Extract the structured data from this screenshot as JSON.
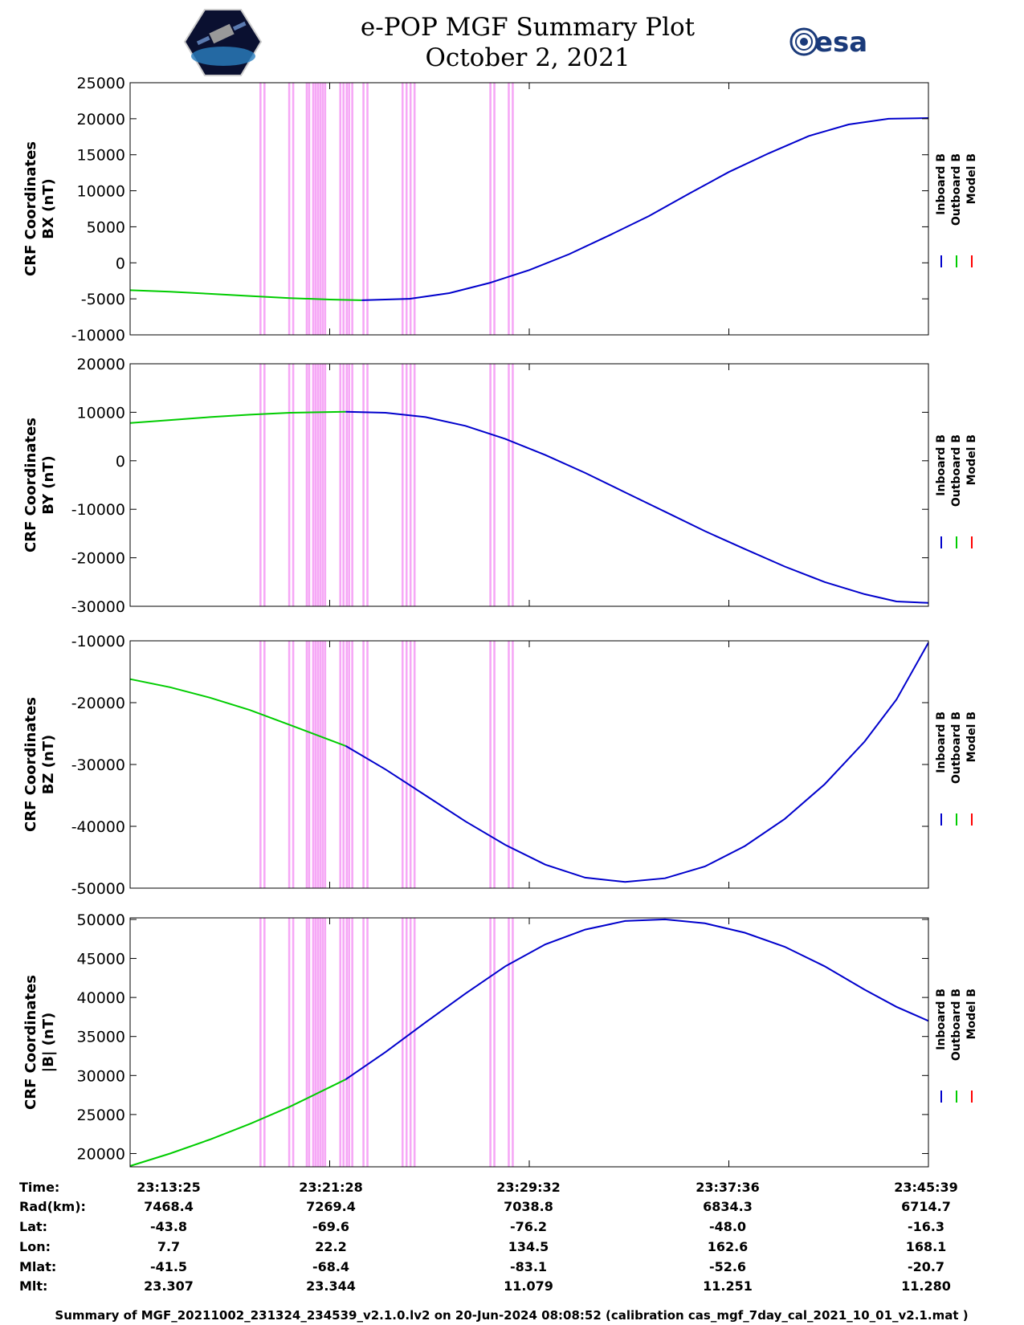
{
  "header": {
    "title_line1": "e-POP MGF Summary Plot",
    "title_line2": "October 2, 2021",
    "logo_left": "cassiope-mission-logo",
    "logo_right_text": "esa"
  },
  "colors": {
    "inboard": "#0000cc",
    "outboard": "#00cc00",
    "model": "#ff0000",
    "bands": "#f6a8f6"
  },
  "chart_data": [
    {
      "type": "line",
      "ylabel_line1": "CRF Coordinates",
      "ylabel_line2": "BX (nT)",
      "ylim": [
        -10000,
        25000
      ],
      "yticks": [
        25000,
        20000,
        15000,
        10000,
        5000,
        0,
        -5000,
        -10000
      ],
      "legend": [
        "Inboard B",
        "Outboard B",
        "Model B"
      ],
      "series": [
        {
          "name": "Outboard B",
          "x": [
            0,
            0.05,
            0.1,
            0.15,
            0.2,
            0.25,
            0.29
          ],
          "y": [
            -3800,
            -4000,
            -4300,
            -4600,
            -4900,
            -5100,
            -5200
          ]
        },
        {
          "name": "Inboard B",
          "x": [
            0.29,
            0.35,
            0.4,
            0.45,
            0.5,
            0.55,
            0.6,
            0.65,
            0.7,
            0.75,
            0.8,
            0.85,
            0.9,
            0.95,
            1.0
          ],
          "y": [
            -5200,
            -5000,
            -4200,
            -2800,
            -1000,
            1200,
            3800,
            6500,
            9600,
            12600,
            15200,
            17600,
            19200,
            20000,
            20100
          ]
        }
      ]
    },
    {
      "type": "line",
      "ylabel_line1": "CRF Coordinates",
      "ylabel_line2": "BY (nT)",
      "ylim": [
        -30000,
        20000
      ],
      "yticks": [
        20000,
        10000,
        0,
        -10000,
        -20000,
        -30000
      ],
      "legend": [
        "Inboard B",
        "Outboard B",
        "Model B"
      ],
      "series": [
        {
          "name": "Outboard B",
          "x": [
            0,
            0.05,
            0.1,
            0.15,
            0.2,
            0.27
          ],
          "y": [
            7800,
            8400,
            9000,
            9500,
            9900,
            10100
          ]
        },
        {
          "name": "Inboard B",
          "x": [
            0.27,
            0.32,
            0.37,
            0.42,
            0.47,
            0.52,
            0.57,
            0.62,
            0.67,
            0.72,
            0.77,
            0.82,
            0.87,
            0.92,
            0.96,
            1.0
          ],
          "y": [
            10100,
            9900,
            9000,
            7200,
            4500,
            1200,
            -2500,
            -6500,
            -10500,
            -14500,
            -18200,
            -21800,
            -25000,
            -27500,
            -29000,
            -29300
          ]
        }
      ]
    },
    {
      "type": "line",
      "ylabel_line1": "CRF Coordinates",
      "ylabel_line2": "BZ (nT)",
      "ylim": [
        -50000,
        -10000
      ],
      "yticks": [
        -10000,
        -20000,
        -30000,
        -40000,
        -50000
      ],
      "legend": [
        "Inboard B",
        "Outboard B",
        "Model B"
      ],
      "series": [
        {
          "name": "Outboard B",
          "x": [
            0,
            0.05,
            0.1,
            0.15,
            0.2,
            0.27
          ],
          "y": [
            -16200,
            -17500,
            -19200,
            -21200,
            -23600,
            -27000
          ]
        },
        {
          "name": "Inboard B",
          "x": [
            0.27,
            0.32,
            0.37,
            0.42,
            0.47,
            0.52,
            0.57,
            0.62,
            0.67,
            0.72,
            0.77,
            0.82,
            0.87,
            0.92,
            0.96,
            1.0
          ],
          "y": [
            -27000,
            -30800,
            -35000,
            -39200,
            -43000,
            -46200,
            -48300,
            -49000,
            -48400,
            -46500,
            -43200,
            -38800,
            -33200,
            -26300,
            -19500,
            -10300
          ]
        }
      ]
    },
    {
      "type": "line",
      "ylabel_line1": "CRF Coordinates",
      "ylabel_line2": "|B| (nT)",
      "ylim": [
        18300,
        50200
      ],
      "yticks": [
        50000,
        45000,
        40000,
        35000,
        30000,
        25000,
        20000
      ],
      "legend": [
        "Inboard B",
        "Outboard B",
        "Model B"
      ],
      "series": [
        {
          "name": "Outboard B",
          "x": [
            0,
            0.05,
            0.1,
            0.15,
            0.2,
            0.27
          ],
          "y": [
            18400,
            20000,
            21800,
            23800,
            26000,
            29500
          ]
        },
        {
          "name": "Inboard B",
          "x": [
            0.27,
            0.32,
            0.37,
            0.42,
            0.47,
            0.52,
            0.57,
            0.62,
            0.67,
            0.72,
            0.77,
            0.82,
            0.87,
            0.92,
            0.96,
            1.0
          ],
          "y": [
            29500,
            33000,
            36800,
            40500,
            44000,
            46800,
            48700,
            49800,
            50000,
            49500,
            48300,
            46500,
            44000,
            41000,
            38800,
            37000
          ]
        }
      ]
    }
  ],
  "band_positions": [
    0.162,
    0.167,
    0.198,
    0.203,
    0.22,
    0.223,
    0.228,
    0.231,
    0.234,
    0.237,
    0.24,
    0.243,
    0.262,
    0.266,
    0.27,
    0.273,
    0.277,
    0.291,
    0.296,
    0.34,
    0.345,
    0.35,
    0.355,
    0.45,
    0.455,
    0.473,
    0.478
  ],
  "info_table": {
    "row_labels": [
      "Time:",
      "Rad(km):",
      "Lat:",
      "Lon:",
      "Mlat:",
      "Mlt:"
    ],
    "columns": [
      [
        "23:13:25",
        "7468.4",
        "-43.8",
        "7.7",
        "-41.5",
        "23.307"
      ],
      [
        "23:21:28",
        "7269.4",
        "-69.6",
        "22.2",
        "-68.4",
        "23.344"
      ],
      [
        "23:29:32",
        "7038.8",
        "-76.2",
        "134.5",
        "-83.1",
        "11.079"
      ],
      [
        "23:37:36",
        "6834.3",
        "-48.0",
        "162.6",
        "-52.6",
        "11.251"
      ],
      [
        "23:45:39",
        "6714.7",
        "-16.3",
        "168.1",
        "-20.7",
        "11.280"
      ]
    ]
  },
  "footer": "Summary of MGF_20211002_231324_234539_v2.1.0.lv2 on 20-Jun-2024 08:08:52 (calibration cas_mgf_7day_cal_2021_10_01_v2.1.mat )"
}
